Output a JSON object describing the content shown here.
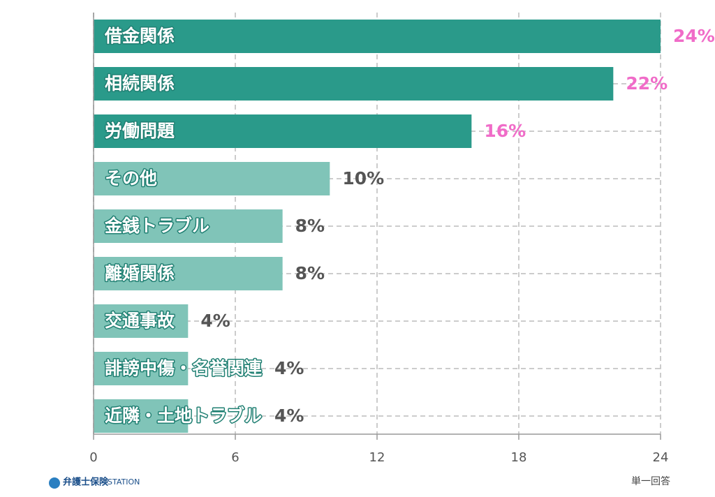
{
  "chart_data": {
    "type": "barh",
    "categories": [
      "借金関係",
      "相続関係",
      "労働問題",
      "その他",
      "金銭トラブル",
      "離婚関係",
      "交通事故",
      "誹謗中傷・名誉関連",
      "近隣・土地トラブル"
    ],
    "values": [
      24,
      22,
      16,
      10,
      8,
      8,
      4,
      4,
      4
    ],
    "value_labels": [
      "24%",
      "22%",
      "16%",
      "10%",
      "8%",
      "8%",
      "4%",
      "4%",
      "4%"
    ],
    "colors": [
      "#2a9a8a",
      "#2a9a8a",
      "#2a9a8a",
      "#80c4b8",
      "#80c4b8",
      "#80c4b8",
      "#80c4b8",
      "#80c4b8",
      "#80c4b8"
    ],
    "value_label_colors": [
      "#f06cc8",
      "#f06cc8",
      "#f06cc8",
      "#555555",
      "#555555",
      "#555555",
      "#555555",
      "#555555",
      "#555555"
    ],
    "xlim": [
      0,
      24
    ],
    "xticks": [
      0,
      6,
      12,
      18,
      24
    ],
    "grid": true,
    "note": "単一回答",
    "logo": {
      "name": "弁護士保険",
      "suffix": "STATION"
    }
  }
}
